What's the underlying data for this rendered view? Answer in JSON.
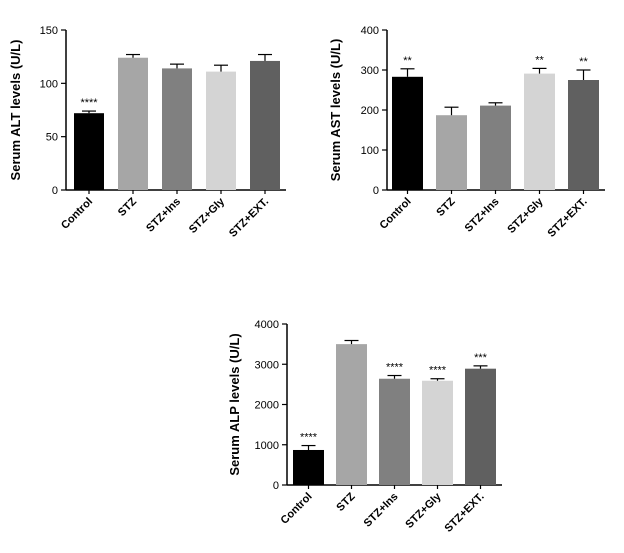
{
  "chart_data": [
    {
      "type": "bar",
      "ylabel": "Serum ALT levels (U/L)",
      "categories": [
        "Control",
        "STZ",
        "STZ+Ins",
        "STZ+Gly",
        "STZ+EXT."
      ],
      "values": [
        72,
        124,
        114,
        111,
        121
      ],
      "errors": [
        2,
        3,
        4,
        6,
        6
      ],
      "significance": [
        "****",
        "",
        "",
        "",
        ""
      ],
      "colors": [
        "#000000",
        "#a6a6a6",
        "#808080",
        "#d4d4d4",
        "#606060"
      ],
      "ylim": [
        0,
        150
      ],
      "yticks": [
        0,
        50,
        100,
        150
      ]
    },
    {
      "type": "bar",
      "ylabel": "Serum AST levels (U/L)",
      "categories": [
        "Control",
        "STZ",
        "STZ+Ins",
        "STZ+Gly",
        "STZ+EXT."
      ],
      "values": [
        283,
        187,
        211,
        291,
        275
      ],
      "errors": [
        20,
        20,
        7,
        13,
        25
      ],
      "significance": [
        "**",
        "",
        "",
        "**",
        "**"
      ],
      "colors": [
        "#000000",
        "#a6a6a6",
        "#808080",
        "#d4d4d4",
        "#606060"
      ],
      "ylim": [
        0,
        400
      ],
      "yticks": [
        0,
        100,
        200,
        300,
        400
      ]
    },
    {
      "type": "bar",
      "ylabel": "Serum ALP levels (U/L)",
      "categories": [
        "Control",
        "STZ",
        "STZ+Ins",
        "STZ+Gly",
        "STZ+EXT."
      ],
      "values": [
        870,
        3500,
        2640,
        2590,
        2890
      ],
      "errors": [
        110,
        90,
        80,
        50,
        70
      ],
      "significance": [
        "****",
        "",
        "****",
        "****",
        "***"
      ],
      "colors": [
        "#000000",
        "#a6a6a6",
        "#808080",
        "#d4d4d4",
        "#606060"
      ],
      "ylim": [
        0,
        4000
      ],
      "yticks": [
        0,
        1000,
        2000,
        3000,
        4000
      ]
    }
  ]
}
